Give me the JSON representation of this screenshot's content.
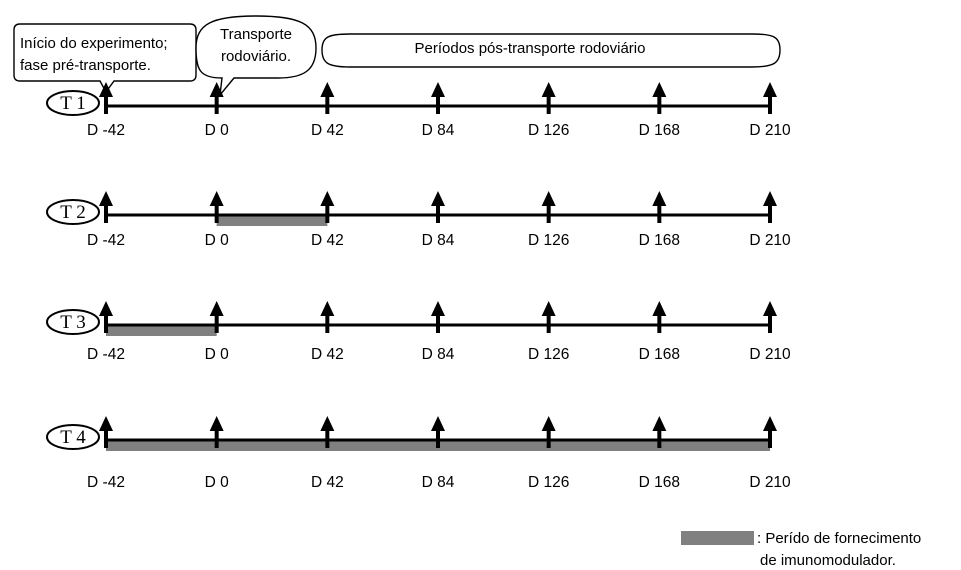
{
  "callouts": {
    "start": [
      "Início do experimento;",
      "fase pré-transporte."
    ],
    "transport": [
      "Transporte",
      "rodoviário."
    ],
    "post": "Períodos pós-transporte rodoviário"
  },
  "days": [
    -42,
    0,
    42,
    84,
    126,
    168,
    210
  ],
  "timelines": [
    {
      "label": "T 1",
      "tick_labels": [
        "D -42",
        "D 0",
        "D 42",
        "D 84",
        "D 126",
        "D 168",
        "D 210"
      ],
      "supply_period": null
    },
    {
      "label": "T 2",
      "tick_labels": [
        "D -42",
        "D 0",
        "D 42",
        "D 84",
        "D 126",
        "D 168",
        "D 210"
      ],
      "supply_period": [
        0,
        42
      ]
    },
    {
      "label": "T 3",
      "tick_labels": [
        "D -42",
        "D 0",
        "D 42",
        "D 84",
        "D 126",
        "D 168",
        "D 210"
      ],
      "supply_period": [
        -42,
        0
      ]
    },
    {
      "label": "T 4",
      "tick_labels": [
        "D -42",
        "D 0",
        "D 42",
        "D 84",
        "D 126",
        "D 168",
        "D 210"
      ],
      "supply_period": [
        -42,
        210
      ]
    }
  ],
  "legend": {
    "lines": [
      ": Perído de fornecimento",
      "de imunomodulador."
    ]
  },
  "colors": {
    "line": "#000000",
    "supply_bar": "#808080"
  }
}
